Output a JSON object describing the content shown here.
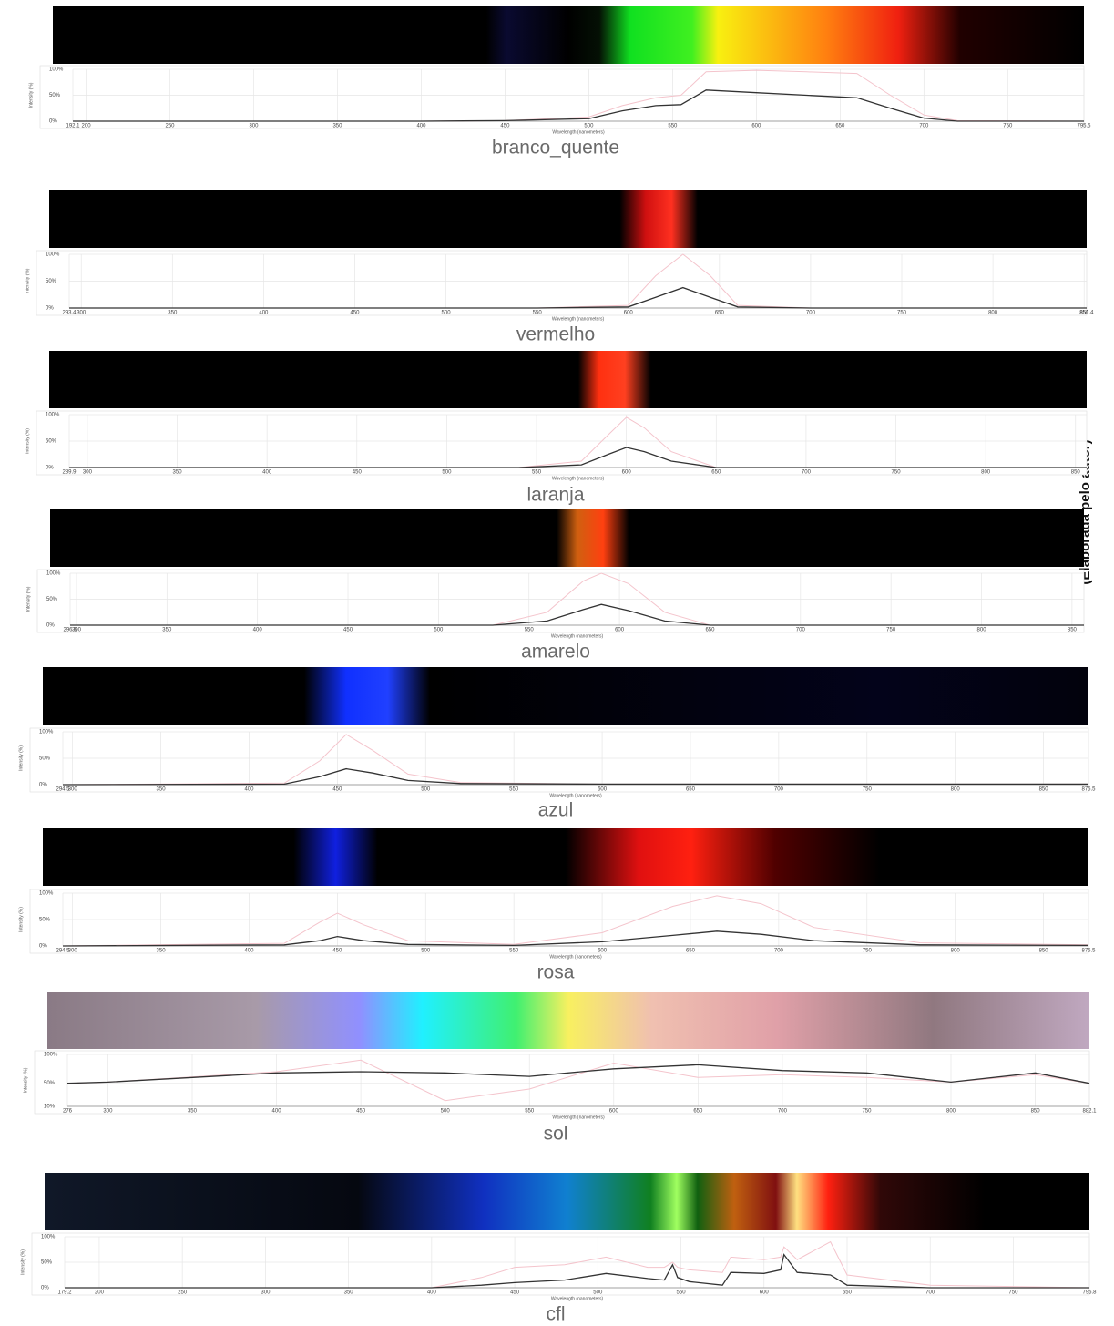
{
  "source": "(Elaborada pelo autor)",
  "chart_data": [
    {
      "type": "line",
      "title": "branco_quente",
      "xlabel": "Wavelength (nanometers)",
      "ylabel": "Intensity (%)",
      "grid": true,
      "x": [
        192.1,
        400,
        450,
        500,
        520,
        540,
        555,
        570,
        600,
        630,
        660,
        680,
        700,
        720,
        795.5
      ],
      "xlim": [
        192.1,
        795.5
      ],
      "xticks": [
        192.1,
        200,
        250,
        300,
        350,
        400,
        450,
        500,
        550,
        600,
        650,
        700,
        750,
        795.5
      ],
      "ylim": [
        0,
        100
      ],
      "yticks": [
        {
          "value": 0,
          "label": "0%"
        },
        {
          "value": 50,
          "label": "50%"
        },
        {
          "value": 100,
          "label": "100%"
        }
      ],
      "series": [
        {
          "color": "#f4c4cc",
          "values": [
            0,
            0,
            1,
            8,
            30,
            45,
            50,
            95,
            98,
            95,
            92,
            50,
            12,
            1,
            0
          ]
        },
        {
          "color": "#333333",
          "values": [
            0,
            0,
            1,
            5,
            20,
            30,
            32,
            60,
            55,
            50,
            45,
            25,
            6,
            0,
            0
          ]
        }
      ]
    },
    {
      "type": "line",
      "title": "vermelho",
      "xlabel": "Wavelength (nanometers)",
      "ylabel": "Intensity (%)",
      "grid": true,
      "x": [
        293.4,
        550,
        600,
        615,
        630,
        645,
        660,
        700,
        851.4
      ],
      "xlim": [
        293.4,
        851.4
      ],
      "xticks": [
        293.4,
        300,
        350,
        400,
        450,
        500,
        550,
        600,
        650,
        700,
        750,
        800,
        850,
        851.4
      ],
      "ylim": [
        0,
        100
      ],
      "yticks": [
        {
          "value": 0,
          "label": "0%"
        },
        {
          "value": 50,
          "label": "50%"
        },
        {
          "value": 100,
          "label": "100%"
        }
      ],
      "series": [
        {
          "color": "#f4c4cc",
          "values": [
            0,
            0,
            5,
            60,
            100,
            60,
            5,
            0,
            0
          ]
        },
        {
          "color": "#333333",
          "values": [
            0,
            0,
            2,
            20,
            38,
            20,
            2,
            0,
            0
          ]
        }
      ]
    },
    {
      "type": "line",
      "title": "laranja",
      "xlabel": "Wavelength (nanometers)",
      "ylabel": "Intensity (%)",
      "grid": true,
      "x": [
        289.9,
        540,
        575,
        590,
        600,
        610,
        625,
        650,
        856.2
      ],
      "xlim": [
        289.9,
        856.2
      ],
      "xticks": [
        289.9,
        300,
        350,
        400,
        450,
        500,
        550,
        600,
        650,
        700,
        750,
        800,
        850
      ],
      "ylim": [
        0,
        100
      ],
      "yticks": [
        {
          "value": 0,
          "label": "0%"
        },
        {
          "value": 50,
          "label": "50%"
        },
        {
          "value": 100,
          "label": "100%"
        }
      ],
      "series": [
        {
          "color": "#f4c4cc",
          "values": [
            0,
            0,
            12,
            62,
            95,
            75,
            30,
            0,
            0
          ]
        },
        {
          "color": "#333333",
          "values": [
            0,
            0,
            5,
            25,
            38,
            30,
            12,
            0,
            0
          ]
        }
      ]
    },
    {
      "type": "line",
      "title": "amarelo",
      "xlabel": "Wavelength (nanometers)",
      "ylabel": "Intensity (%)",
      "grid": true,
      "x": [
        296.5,
        530,
        560,
        580,
        590,
        605,
        625,
        650,
        856.6
      ],
      "xlim": [
        296.5,
        856.6
      ],
      "xticks": [
        296.5,
        300,
        350,
        400,
        450,
        500,
        550,
        600,
        650,
        700,
        750,
        800,
        850
      ],
      "ylim": [
        0,
        100
      ],
      "yticks": [
        {
          "value": 0,
          "label": "0%"
        },
        {
          "value": 50,
          "label": "50%"
        },
        {
          "value": 100,
          "label": "100%"
        }
      ],
      "series": [
        {
          "color": "#f4c4cc",
          "values": [
            0,
            0,
            25,
            85,
            100,
            80,
            25,
            0,
            0
          ]
        },
        {
          "color": "#333333",
          "values": [
            0,
            0,
            8,
            30,
            40,
            28,
            8,
            0,
            0
          ]
        }
      ]
    },
    {
      "type": "line",
      "title": "azul",
      "xlabel": "Wavelength (nanometers)",
      "ylabel": "Intensity (%)",
      "grid": true,
      "x": [
        294.5,
        420,
        440,
        455,
        470,
        490,
        520,
        600,
        875.5
      ],
      "xlim": [
        294.5,
        875.5
      ],
      "xticks": [
        294.5,
        300,
        350,
        400,
        450,
        500,
        550,
        600,
        650,
        700,
        750,
        800,
        850,
        875.5
      ],
      "ylim": [
        0,
        100
      ],
      "yticks": [
        {
          "value": 0,
          "label": "0%"
        },
        {
          "value": 50,
          "label": "50%"
        },
        {
          "value": 100,
          "label": "100%"
        }
      ],
      "series": [
        {
          "color": "#f4c4cc",
          "values": [
            0,
            3,
            45,
            95,
            65,
            20,
            4,
            1,
            1
          ]
        },
        {
          "color": "#333333",
          "values": [
            0,
            1,
            15,
            30,
            22,
            8,
            2,
            1,
            1
          ]
        }
      ]
    },
    {
      "type": "line",
      "title": "rosa",
      "xlabel": "Wavelength (nanometers)",
      "ylabel": "Intensity (%)",
      "grid": true,
      "x": [
        294.5,
        420,
        440,
        450,
        465,
        490,
        550,
        600,
        640,
        665,
        690,
        720,
        780,
        875.5
      ],
      "xlim": [
        294.5,
        875.5
      ],
      "xticks": [
        294.5,
        300,
        350,
        400,
        450,
        500,
        550,
        600,
        650,
        700,
        750,
        800,
        850,
        875.5
      ],
      "ylim": [
        0,
        100
      ],
      "yticks": [
        {
          "value": 0,
          "label": "0%"
        },
        {
          "value": 50,
          "label": "50%"
        },
        {
          "value": 100,
          "label": "100%"
        }
      ],
      "series": [
        {
          "color": "#f4c4cc",
          "values": [
            0,
            5,
            45,
            62,
            40,
            10,
            3,
            25,
            75,
            95,
            80,
            35,
            6,
            2
          ]
        },
        {
          "color": "#333333",
          "values": [
            0,
            2,
            10,
            18,
            10,
            3,
            1,
            8,
            20,
            28,
            22,
            10,
            2,
            1
          ]
        }
      ]
    },
    {
      "type": "line",
      "title": "sol",
      "xlabel": "Wavelength (nanometers)",
      "ylabel": "Intensity (%)",
      "grid": true,
      "x": [
        276,
        300,
        400,
        450,
        500,
        550,
        600,
        650,
        700,
        750,
        800,
        850,
        882.1
      ],
      "xlim": [
        276,
        882.1
      ],
      "xticks": [
        276,
        300,
        350,
        400,
        450,
        500,
        550,
        600,
        650,
        700,
        750,
        800,
        850,
        882.1
      ],
      "ylim": [
        10,
        100
      ],
      "yticks": [
        {
          "value": 10,
          "label": "10%"
        },
        {
          "value": 50,
          "label": "50%"
        },
        {
          "value": 100,
          "label": "100%"
        }
      ],
      "series": [
        {
          "color": "#f4c4cc",
          "values": [
            50,
            52,
            70,
            90,
            20,
            40,
            85,
            60,
            65,
            60,
            52,
            65,
            50
          ]
        },
        {
          "color": "#333333",
          "values": [
            50,
            52,
            68,
            70,
            68,
            62,
            75,
            82,
            72,
            68,
            52,
            68,
            50
          ]
        }
      ]
    },
    {
      "type": "line",
      "title": "cfl",
      "xlabel": "Wavelength (nanometers)",
      "ylabel": "Intensity (%)",
      "grid": true,
      "x": [
        179.2,
        400,
        430,
        450,
        480,
        505,
        530,
        540,
        545,
        548,
        555,
        575,
        580,
        600,
        610,
        612,
        620,
        640,
        650,
        700,
        795.8
      ],
      "xlim": [
        179.2,
        795.8
      ],
      "xticks": [
        179.2,
        200,
        250,
        300,
        350,
        400,
        450,
        500,
        550,
        600,
        650,
        700,
        750,
        795.8
      ],
      "ylim": [
        0,
        100
      ],
      "yticks": [
        {
          "value": 0,
          "label": "0%"
        },
        {
          "value": 50,
          "label": "50%"
        },
        {
          "value": 100,
          "label": "100%"
        }
      ],
      "series": [
        {
          "color": "#f4c4cc",
          "values": [
            0,
            0,
            20,
            40,
            45,
            60,
            40,
            40,
            50,
            40,
            35,
            30,
            60,
            55,
            60,
            80,
            55,
            90,
            25,
            5,
            0
          ]
        },
        {
          "color": "#333333",
          "values": [
            0,
            0,
            5,
            10,
            15,
            28,
            18,
            15,
            45,
            20,
            12,
            5,
            30,
            28,
            35,
            65,
            30,
            25,
            5,
            0,
            0
          ]
        }
      ]
    }
  ]
}
